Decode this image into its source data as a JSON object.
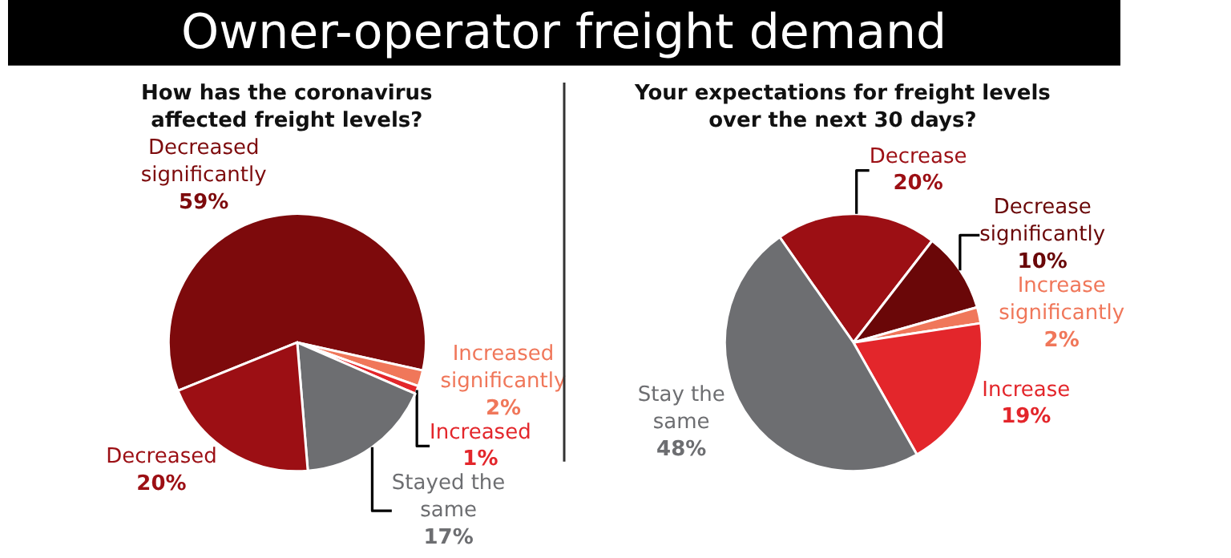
{
  "chart_data": [
    {
      "type": "pie",
      "title": "How has the coronavirus affected freight levels?",
      "annotations": [
        "Owner-operator freight demand"
      ],
      "categories": [
        "Decreased significantly",
        "Increased significantly",
        "Increased",
        "Stayed the same",
        "Decreased"
      ],
      "values": [
        59,
        2,
        1,
        17,
        20
      ],
      "value_labels": [
        "59%",
        "2%",
        "1%",
        "17%",
        "20%"
      ],
      "colors": [
        "#7d0a0c",
        "#f0775a",
        "#e3262b",
        "#6d6e71",
        "#9c0f14"
      ],
      "data_labels": true
    },
    {
      "type": "pie",
      "title": "Your expectations for freight levels over the next 30 days?",
      "categories": [
        "Decrease",
        "Decrease significantly",
        "Increase significantly",
        "Increase",
        "Stay the same"
      ],
      "values": [
        20,
        10,
        2,
        19,
        48
      ],
      "value_labels": [
        "20%",
        "10%",
        "2%",
        "19%",
        "48%"
      ],
      "colors": [
        "#9c0f14",
        "#6a0708",
        "#f0775a",
        "#e3262b",
        "#6d6e71"
      ],
      "data_labels": true
    }
  ]
}
